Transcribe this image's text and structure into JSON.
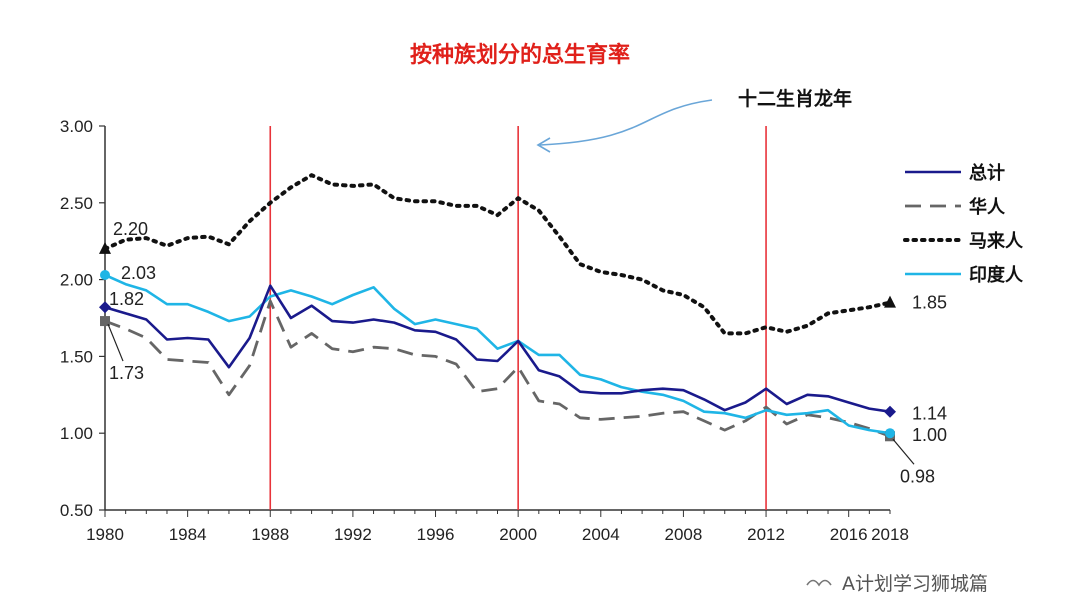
{
  "chart_data": {
    "type": "line",
    "title": "按种族划分的总生育率",
    "annotation": "十二生肖龙年",
    "dragon_years": [
      1988,
      2000,
      2012
    ],
    "xlim": [
      1980,
      2018
    ],
    "ylim": [
      0.5,
      3.0
    ],
    "x_ticks": [
      "1980",
      "1984",
      "1988",
      "1992",
      "1996",
      "2000",
      "2004",
      "2008",
      "2012",
      "2016",
      "2018"
    ],
    "y_ticks": [
      "0.50",
      "1.00",
      "1.50",
      "2.00",
      "2.50",
      "3.00"
    ],
    "legend_position": "right",
    "grid": false,
    "x": [
      1980,
      1981,
      1982,
      1983,
      1984,
      1985,
      1986,
      1987,
      1988,
      1989,
      1990,
      1991,
      1992,
      1993,
      1994,
      1995,
      1996,
      1997,
      1998,
      1999,
      2000,
      2001,
      2002,
      2003,
      2004,
      2005,
      2006,
      2007,
      2008,
      2009,
      2010,
      2011,
      2012,
      2013,
      2014,
      2015,
      2016,
      2017,
      2018
    ],
    "series": [
      {
        "name": "总计",
        "color": "#1a1a8c",
        "dash": "solid",
        "marker": "diamond",
        "values": [
          1.82,
          1.78,
          1.74,
          1.61,
          1.62,
          1.61,
          1.43,
          1.62,
          1.96,
          1.75,
          1.83,
          1.73,
          1.72,
          1.74,
          1.72,
          1.67,
          1.66,
          1.61,
          1.48,
          1.47,
          1.6,
          1.41,
          1.37,
          1.27,
          1.26,
          1.26,
          1.28,
          1.29,
          1.28,
          1.22,
          1.15,
          1.2,
          1.29,
          1.19,
          1.25,
          1.24,
          1.2,
          1.16,
          1.14
        ]
      },
      {
        "name": "华人",
        "color": "#666666",
        "dash": "long",
        "marker": "square",
        "values": [
          1.73,
          1.68,
          1.62,
          1.48,
          1.47,
          1.46,
          1.25,
          1.44,
          1.86,
          1.56,
          1.65,
          1.55,
          1.53,
          1.56,
          1.55,
          1.51,
          1.5,
          1.45,
          1.27,
          1.29,
          1.43,
          1.21,
          1.19,
          1.1,
          1.09,
          1.1,
          1.11,
          1.13,
          1.14,
          1.08,
          1.02,
          1.08,
          1.17,
          1.06,
          1.12,
          1.1,
          1.07,
          1.03,
          0.98
        ]
      },
      {
        "name": "马来人",
        "color": "#111111",
        "dash": "dotted",
        "marker": "triangle",
        "values": [
          2.2,
          2.26,
          2.27,
          2.22,
          2.27,
          2.28,
          2.23,
          2.38,
          2.5,
          2.6,
          2.68,
          2.62,
          2.61,
          2.62,
          2.53,
          2.51,
          2.51,
          2.48,
          2.48,
          2.42,
          2.53,
          2.45,
          2.28,
          2.1,
          2.05,
          2.03,
          2.0,
          1.93,
          1.9,
          1.82,
          1.65,
          1.65,
          1.69,
          1.66,
          1.7,
          1.78,
          1.8,
          1.82,
          1.85
        ]
      },
      {
        "name": "印度人",
        "color": "#1fb5e6",
        "dash": "solid",
        "marker": "circle",
        "values": [
          2.03,
          1.97,
          1.93,
          1.84,
          1.84,
          1.79,
          1.73,
          1.76,
          1.89,
          1.93,
          1.89,
          1.84,
          1.9,
          1.95,
          1.81,
          1.71,
          1.74,
          1.71,
          1.68,
          1.55,
          1.6,
          1.51,
          1.51,
          1.38,
          1.35,
          1.3,
          1.27,
          1.25,
          1.21,
          1.14,
          1.13,
          1.1,
          1.15,
          1.12,
          1.13,
          1.15,
          1.05,
          1.02,
          1.0
        ]
      }
    ],
    "data_labels": [
      {
        "series": "马来人",
        "x": 1980,
        "text": "2.20"
      },
      {
        "series": "印度人",
        "x": 1980,
        "text": "2.03"
      },
      {
        "series": "总计",
        "x": 1980,
        "text": "1.82"
      },
      {
        "series": "华人",
        "x": 1980,
        "text": "1.73"
      },
      {
        "series": "马来人",
        "x": 2018,
        "text": "1.85"
      },
      {
        "series": "总计",
        "x": 2018,
        "text": "1.14"
      },
      {
        "series": "印度人",
        "x": 2018,
        "text": "1.00"
      },
      {
        "series": "华人",
        "x": 2018,
        "text": "0.98"
      }
    ]
  },
  "watermark": "A计划学习狮城篇"
}
